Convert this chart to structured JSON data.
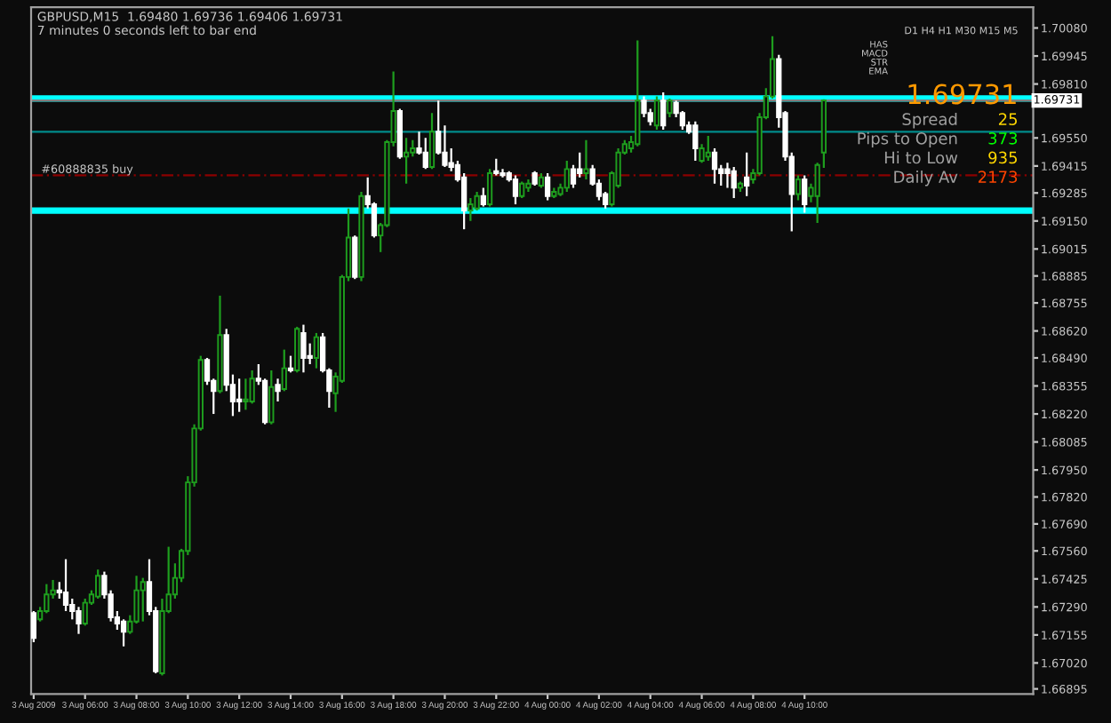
{
  "chart_data": {
    "type": "candlestick",
    "title": "GBPUSD,M15  1.69480 1.69736 1.69406 1.69731",
    "subtitle": "7 minutes 0 seconds left to bar end",
    "x": [
      "2009-08-03T04:00",
      "2009-08-03T04:15",
      "2009-08-03T04:30",
      "2009-08-03T04:45",
      "2009-08-03T05:00",
      "2009-08-03T05:15",
      "2009-08-03T05:30",
      "2009-08-03T05:45",
      "2009-08-03T06:00",
      "2009-08-03T06:15",
      "2009-08-03T06:30",
      "2009-08-03T06:45",
      "2009-08-03T07:00",
      "2009-08-03T07:15",
      "2009-08-03T07:30",
      "2009-08-03T07:45",
      "2009-08-03T08:00",
      "2009-08-03T08:15",
      "2009-08-03T08:30",
      "2009-08-03T08:45",
      "2009-08-03T09:00",
      "2009-08-03T09:15",
      "2009-08-03T09:30",
      "2009-08-03T09:45",
      "2009-08-03T10:00",
      "2009-08-03T10:15",
      "2009-08-03T10:30",
      "2009-08-03T10:45",
      "2009-08-03T11:00",
      "2009-08-03T11:15",
      "2009-08-03T11:30",
      "2009-08-03T11:45",
      "2009-08-03T12:00",
      "2009-08-03T12:15",
      "2009-08-03T12:30",
      "2009-08-03T12:45",
      "2009-08-03T13:00",
      "2009-08-03T13:15",
      "2009-08-03T13:30",
      "2009-08-03T13:45",
      "2009-08-03T14:00",
      "2009-08-03T14:15",
      "2009-08-03T14:30",
      "2009-08-03T14:45",
      "2009-08-03T15:00",
      "2009-08-03T15:15",
      "2009-08-03T15:30",
      "2009-08-03T15:45",
      "2009-08-03T16:00",
      "2009-08-03T16:15",
      "2009-08-03T16:30",
      "2009-08-03T16:45",
      "2009-08-03T17:00",
      "2009-08-03T17:15",
      "2009-08-03T17:30",
      "2009-08-03T17:45",
      "2009-08-03T18:00",
      "2009-08-03T18:15",
      "2009-08-03T18:30",
      "2009-08-03T18:45",
      "2009-08-03T19:00",
      "2009-08-03T19:15",
      "2009-08-03T19:30",
      "2009-08-03T19:45",
      "2009-08-03T20:00",
      "2009-08-03T20:15",
      "2009-08-03T20:30",
      "2009-08-03T20:45",
      "2009-08-03T21:00",
      "2009-08-03T21:15",
      "2009-08-03T21:30",
      "2009-08-03T21:45",
      "2009-08-03T22:00",
      "2009-08-03T22:15",
      "2009-08-03T22:30",
      "2009-08-03T22:45",
      "2009-08-03T23:00",
      "2009-08-03T23:15",
      "2009-08-03T23:30",
      "2009-08-03T23:45",
      "2009-08-04T00:00",
      "2009-08-04T00:15",
      "2009-08-04T00:30",
      "2009-08-04T00:45",
      "2009-08-04T01:00",
      "2009-08-04T01:15",
      "2009-08-04T01:30",
      "2009-08-04T01:45",
      "2009-08-04T02:00",
      "2009-08-04T02:15",
      "2009-08-04T02:30",
      "2009-08-04T02:45",
      "2009-08-04T03:00",
      "2009-08-04T03:15",
      "2009-08-04T03:30",
      "2009-08-04T03:45",
      "2009-08-04T04:00",
      "2009-08-04T04:15",
      "2009-08-04T04:30",
      "2009-08-04T04:45",
      "2009-08-04T05:00",
      "2009-08-04T05:15",
      "2009-08-04T05:30",
      "2009-08-04T05:45",
      "2009-08-04T06:00",
      "2009-08-04T06:15",
      "2009-08-04T06:30",
      "2009-08-04T06:45",
      "2009-08-04T07:00",
      "2009-08-04T07:15",
      "2009-08-04T07:30",
      "2009-08-04T07:45",
      "2009-08-04T08:00",
      "2009-08-04T08:15",
      "2009-08-04T08:30",
      "2009-08-04T08:45",
      "2009-08-04T09:00",
      "2009-08-04T09:15",
      "2009-08-04T09:30",
      "2009-08-04T09:45",
      "2009-08-04T10:00",
      "2009-08-04T10:15",
      "2009-08-04T10:30",
      "2009-08-04T10:45"
    ],
    "ohlc": [
      [
        1.6726,
        1.6727,
        1.6712,
        1.6714
      ],
      [
        1.6723,
        1.6729,
        1.6722,
        1.6727
      ],
      [
        1.6727,
        1.674,
        1.6726,
        1.6735
      ],
      [
        1.6735,
        1.6742,
        1.6733,
        1.6737
      ],
      [
        1.6737,
        1.6741,
        1.6733,
        1.6736
      ],
      [
        1.6736,
        1.6752,
        1.6727,
        1.673
      ],
      [
        1.673,
        1.6733,
        1.6723,
        1.6727
      ],
      [
        1.6727,
        1.6729,
        1.6716,
        1.6721
      ],
      [
        1.6721,
        1.6733,
        1.672,
        1.6731
      ],
      [
        1.6731,
        1.6737,
        1.673,
        1.6735
      ],
      [
        1.6734,
        1.6747,
        1.6733,
        1.6744
      ],
      [
        1.6744,
        1.6746,
        1.6733,
        1.6735
      ],
      [
        1.6735,
        1.6737,
        1.6722,
        1.6724
      ],
      [
        1.6724,
        1.6727,
        1.6718,
        1.6721
      ],
      [
        1.6722,
        1.6723,
        1.671,
        1.6717
      ],
      [
        1.6717,
        1.6725,
        1.6716,
        1.6722
      ],
      [
        1.6722,
        1.6744,
        1.6721,
        1.6737
      ],
      [
        1.6737,
        1.6743,
        1.6722,
        1.6741
      ],
      [
        1.6741,
        1.6752,
        1.6725,
        1.6727
      ],
      [
        1.6727,
        1.6729,
        1.6697,
        1.6698
      ],
      [
        1.6697,
        1.6733,
        1.6696,
        1.6727
      ],
      [
        1.6727,
        1.6758,
        1.6726,
        1.6735
      ],
      [
        1.6735,
        1.675,
        1.6733,
        1.6743
      ],
      [
        1.6743,
        1.6757,
        1.6741,
        1.6756
      ],
      [
        1.6756,
        1.6792,
        1.6754,
        1.6789
      ],
      [
        1.6789,
        1.6817,
        1.6787,
        1.6815
      ],
      [
        1.6815,
        1.685,
        1.6814,
        1.6848
      ],
      [
        1.6848,
        1.6849,
        1.6836,
        1.6838
      ],
      [
        1.6838,
        1.6839,
        1.6822,
        1.6833
      ],
      [
        1.6833,
        1.6879,
        1.6832,
        1.686
      ],
      [
        1.686,
        1.6863,
        1.6833,
        1.6836
      ],
      [
        1.6836,
        1.6841,
        1.6821,
        1.6828
      ],
      [
        1.6829,
        1.6839,
        1.6823,
        1.6828
      ],
      [
        1.6828,
        1.6839,
        1.6824,
        1.6829
      ],
      [
        1.6828,
        1.6843,
        1.6827,
        1.6839
      ],
      [
        1.6839,
        1.6846,
        1.6836,
        1.6838
      ],
      [
        1.6838,
        1.6839,
        1.6817,
        1.6818
      ],
      [
        1.6818,
        1.6843,
        1.6817,
        1.6835
      ],
      [
        1.6836,
        1.6839,
        1.6828,
        1.6833
      ],
      [
        1.6834,
        1.6853,
        1.6833,
        1.6844
      ],
      [
        1.6844,
        1.685,
        1.6842,
        1.6843
      ],
      [
        1.6843,
        1.6864,
        1.6842,
        1.6863
      ],
      [
        1.6861,
        1.6865,
        1.6842,
        1.6849
      ],
      [
        1.685,
        1.6856,
        1.6846,
        1.6849
      ],
      [
        1.6849,
        1.6861,
        1.6844,
        1.6859
      ],
      [
        1.6859,
        1.6861,
        1.6842,
        1.6843
      ],
      [
        1.6843,
        1.6844,
        1.6825,
        1.6833
      ],
      [
        1.6832,
        1.6842,
        1.6823,
        1.684
      ],
      [
        1.6838,
        1.6889,
        1.6837,
        1.6888
      ],
      [
        1.6888,
        1.6921,
        1.6886,
        1.6907
      ],
      [
        1.6907,
        1.6908,
        1.6887,
        1.6888
      ],
      [
        1.6888,
        1.6929,
        1.6886,
        1.6927
      ],
      [
        1.6927,
        1.6936,
        1.6921,
        1.6923
      ],
      [
        1.6923,
        1.6924,
        1.6907,
        1.6908
      ],
      [
        1.6908,
        1.6914,
        1.69,
        1.6913
      ],
      [
        1.6913,
        1.6954,
        1.6912,
        1.6953
      ],
      [
        1.6953,
        1.6987,
        1.6951,
        1.6968
      ],
      [
        1.6968,
        1.6969,
        1.6945,
        1.6946
      ],
      [
        1.6946,
        1.6955,
        1.6933,
        1.6948
      ],
      [
        1.6948,
        1.6954,
        1.6946,
        1.695
      ],
      [
        1.695,
        1.6958,
        1.6947,
        1.6948
      ],
      [
        1.6948,
        1.6955,
        1.694,
        1.6941
      ],
      [
        1.6941,
        1.6967,
        1.694,
        1.6958
      ],
      [
        1.6958,
        1.6973,
        1.6947,
        1.6948
      ],
      [
        1.6948,
        1.6961,
        1.6941,
        1.6942
      ],
      [
        1.6943,
        1.695,
        1.6939,
        1.6941
      ],
      [
        1.6942,
        1.6944,
        1.6934,
        1.6935
      ],
      [
        1.6936,
        1.6938,
        1.6911,
        1.692
      ],
      [
        1.692,
        1.6926,
        1.6915,
        1.6923
      ],
      [
        1.6921,
        1.6929,
        1.692,
        1.6927
      ],
      [
        1.6927,
        1.6931,
        1.6922,
        1.6923
      ],
      [
        1.6923,
        1.694,
        1.6922,
        1.6938
      ],
      [
        1.6939,
        1.6945,
        1.6937,
        1.6938
      ],
      [
        1.6938,
        1.694,
        1.6936,
        1.6937
      ],
      [
        1.6938,
        1.6939,
        1.6934,
        1.6935
      ],
      [
        1.6935,
        1.6937,
        1.6923,
        1.6927
      ],
      [
        1.6927,
        1.6934,
        1.6926,
        1.6933
      ],
      [
        1.6931,
        1.6935,
        1.6929,
        1.6933
      ],
      [
        1.6938,
        1.6939,
        1.6932,
        1.6933
      ],
      [
        1.6932,
        1.6938,
        1.6931,
        1.6936
      ],
      [
        1.6936,
        1.6938,
        1.6925,
        1.6927
      ],
      [
        1.6927,
        1.6931,
        1.6926,
        1.6929
      ],
      [
        1.6928,
        1.6933,
        1.6927,
        1.6931
      ],
      [
        1.6931,
        1.6944,
        1.6929,
        1.694
      ],
      [
        1.694,
        1.6942,
        1.6931,
        1.6933
      ],
      [
        1.694,
        1.6948,
        1.6936,
        1.6938
      ],
      [
        1.6938,
        1.6954,
        1.6935,
        1.694
      ],
      [
        1.694,
        1.6942,
        1.6932,
        1.6933
      ],
      [
        1.6933,
        1.6935,
        1.6925,
        1.6927
      ],
      [
        1.6928,
        1.6929,
        1.6921,
        1.6923
      ],
      [
        1.6923,
        1.6939,
        1.6922,
        1.6938
      ],
      [
        1.6932,
        1.695,
        1.6931,
        1.6948
      ],
      [
        1.6948,
        1.6954,
        1.6947,
        1.6952
      ],
      [
        1.695,
        1.6956,
        1.6948,
        1.6953
      ],
      [
        1.6952,
        1.7002,
        1.6951,
        1.6973
      ],
      [
        1.6973,
        1.6975,
        1.6965,
        1.6967
      ],
      [
        1.6967,
        1.6969,
        1.6961,
        1.6963
      ],
      [
        1.6961,
        1.6975,
        1.6959,
        1.6973
      ],
      [
        1.6973,
        1.6977,
        1.6959,
        1.6961
      ],
      [
        1.6967,
        1.6974,
        1.6965,
        1.6973
      ],
      [
        1.6972,
        1.6973,
        1.6965,
        1.6967
      ],
      [
        1.6967,
        1.6968,
        1.6959,
        1.6961
      ],
      [
        1.6961,
        1.6963,
        1.6957,
        1.6958
      ],
      [
        1.6961,
        1.6963,
        1.6944,
        1.695
      ],
      [
        1.6944,
        1.6952,
        1.6943,
        1.695
      ],
      [
        1.6946,
        1.6956,
        1.6944,
        1.6948
      ],
      [
        1.6948,
        1.695,
        1.6933,
        1.694
      ],
      [
        1.694,
        1.6942,
        1.6932,
        1.6938
      ],
      [
        1.694,
        1.6943,
        1.6931,
        1.6938
      ],
      [
        1.6939,
        1.6941,
        1.6926,
        1.6931
      ],
      [
        1.6931,
        1.6934,
        1.6929,
        1.6933
      ],
      [
        1.6936,
        1.6948,
        1.6927,
        1.6932
      ],
      [
        1.6935,
        1.694,
        1.6933,
        1.6938
      ],
      [
        1.6938,
        1.6967,
        1.6937,
        1.6965
      ],
      [
        1.6965,
        1.6979,
        1.6964,
        1.6975
      ],
      [
        1.6975,
        1.7004,
        1.6974,
        1.6993
      ],
      [
        1.6993,
        1.6995,
        1.696,
        1.6965
      ],
      [
        1.6967,
        1.6968,
        1.6944,
        1.6946
      ],
      [
        1.6946,
        1.6948,
        1.691,
        1.6928
      ],
      [
        1.6928,
        1.6937,
        1.6925,
        1.6935
      ],
      [
        1.6935,
        1.6937,
        1.6919,
        1.6923
      ],
      [
        1.6927,
        1.6933,
        1.6924,
        1.6931
      ],
      [
        1.6927,
        1.6943,
        1.6914,
        1.6942
      ],
      [
        1.6948,
        1.69736,
        1.69406,
        1.69731
      ]
    ],
    "colors": [
      "#ffffff",
      "#1e9e1e",
      "#1e9e1e",
      "#1e9e1e",
      "#ffffff",
      "#ffffff",
      "#ffffff",
      "#ffffff",
      "#1e9e1e",
      "#1e9e1e",
      "#1e9e1e",
      "#ffffff",
      "#ffffff",
      "#ffffff",
      "#ffffff",
      "#1e9e1e",
      "#1e9e1e",
      "#1e9e1e",
      "#ffffff",
      "#ffffff",
      "#1e9e1e",
      "#1e9e1e",
      "#1e9e1e",
      "#1e9e1e",
      "#1e9e1e",
      "#1e9e1e",
      "#1e9e1e",
      "#ffffff",
      "#ffffff",
      "#1e9e1e",
      "#ffffff",
      "#ffffff",
      "#ffffff",
      "#1e9e1e",
      "#1e9e1e",
      "#ffffff",
      "#ffffff",
      "#1e9e1e",
      "#ffffff",
      "#1e9e1e",
      "#ffffff",
      "#1e9e1e",
      "#ffffff",
      "#ffffff",
      "#1e9e1e",
      "#ffffff",
      "#ffffff",
      "#1e9e1e",
      "#1e9e1e",
      "#1e9e1e",
      "#ffffff",
      "#1e9e1e",
      "#ffffff",
      "#ffffff",
      "#1e9e1e",
      "#1e9e1e",
      "#1e9e1e",
      "#ffffff",
      "#1e9e1e",
      "#1e9e1e",
      "#ffffff",
      "#ffffff",
      "#1e9e1e",
      "#ffffff",
      "#ffffff",
      "#ffffff",
      "#ffffff",
      "#ffffff",
      "#1e9e1e",
      "#1e9e1e",
      "#ffffff",
      "#1e9e1e",
      "#ffffff",
      "#ffffff",
      "#ffffff",
      "#ffffff",
      "#1e9e1e",
      "#1e9e1e",
      "#ffffff",
      "#1e9e1e",
      "#ffffff",
      "#1e9e1e",
      "#1e9e1e",
      "#1e9e1e",
      "#ffffff",
      "#ffffff",
      "#1e9e1e",
      "#ffffff",
      "#ffffff",
      "#ffffff",
      "#1e9e1e",
      "#1e9e1e",
      "#1e9e1e",
      "#1e9e1e",
      "#1e9e1e",
      "#ffffff",
      "#ffffff",
      "#1e9e1e",
      "#ffffff",
      "#1e9e1e",
      "#ffffff",
      "#ffffff",
      "#ffffff",
      "#ffffff",
      "#1e9e1e",
      "#1e9e1e",
      "#ffffff",
      "#ffffff",
      "#ffffff",
      "#ffffff",
      "#1e9e1e",
      "#ffffff",
      "#1e9e1e",
      "#1e9e1e",
      "#1e9e1e",
      "#1e9e1e",
      "#ffffff",
      "#ffffff",
      "#ffffff",
      "#1e9e1e",
      "#ffffff",
      "#1e9e1e",
      "#1e9e1e",
      "#1e9e1e"
    ],
    "xlim": [
      "2009-08-03T03:54",
      "2009-08-04T18:54"
    ],
    "xticks": [
      {
        "value": "2009-08-03T04:00",
        "label": "3 Aug 2009"
      },
      {
        "value": "2009-08-03T06:00",
        "label": "3 Aug 06:00"
      },
      {
        "value": "2009-08-03T08:00",
        "label": "3 Aug 08:00"
      },
      {
        "value": "2009-08-03T10:00",
        "label": "3 Aug 10:00"
      },
      {
        "value": "2009-08-03T12:00",
        "label": "3 Aug 12:00"
      },
      {
        "value": "2009-08-03T14:00",
        "label": "3 Aug 14:00"
      },
      {
        "value": "2009-08-03T16:00",
        "label": "3 Aug 16:00"
      },
      {
        "value": "2009-08-03T18:00",
        "label": "3 Aug 18:00"
      },
      {
        "value": "2009-08-03T20:00",
        "label": "3 Aug 20:00"
      },
      {
        "value": "2009-08-03T22:00",
        "label": "3 Aug 22:00"
      },
      {
        "value": "2009-08-04T00:00",
        "label": "4 Aug 00:00"
      },
      {
        "value": "2009-08-04T02:00",
        "label": "4 Aug 02:00"
      },
      {
        "value": "2009-08-04T04:00",
        "label": "4 Aug 04:00"
      },
      {
        "value": "2009-08-04T06:00",
        "label": "4 Aug 06:00"
      },
      {
        "value": "2009-08-04T08:00",
        "label": "4 Aug 08:00"
      },
      {
        "value": "2009-08-04T10:00",
        "label": "4 Aug 10:00"
      }
    ],
    "ylim": [
      1.6687,
      1.7018
    ],
    "yticks": [
      {
        "value": 1.7008,
        "label": "1.70080"
      },
      {
        "value": 1.69945,
        "label": "1.69945"
      },
      {
        "value": 1.6981,
        "label": "1.69810"
      },
      {
        "value": 1.6955,
        "label": "1.69550"
      },
      {
        "value": 1.69415,
        "label": "1.69415"
      },
      {
        "value": 1.69285,
        "label": "1.69285"
      },
      {
        "value": 1.6915,
        "label": "1.69150"
      },
      {
        "value": 1.69015,
        "label": "1.69015"
      },
      {
        "value": 1.68885,
        "label": "1.68885"
      },
      {
        "value": 1.68755,
        "label": "1.68755"
      },
      {
        "value": 1.6862,
        "label": "1.68620"
      },
      {
        "value": 1.6849,
        "label": "1.68490"
      },
      {
        "value": 1.68355,
        "label": "1.68355"
      },
      {
        "value": 1.6822,
        "label": "1.68220"
      },
      {
        "value": 1.68085,
        "label": "1.68085"
      },
      {
        "value": 1.6795,
        "label": "1.67950"
      },
      {
        "value": 1.6782,
        "label": "1.67820"
      },
      {
        "value": 1.6769,
        "label": "1.67690"
      },
      {
        "value": 1.6756,
        "label": "1.67560"
      },
      {
        "value": 1.67425,
        "label": "1.67425"
      },
      {
        "value": 1.6729,
        "label": "1.67290"
      },
      {
        "value": 1.67155,
        "label": "1.67155"
      },
      {
        "value": 1.6702,
        "label": "1.67020"
      },
      {
        "value": 1.66895,
        "label": "1.66895"
      }
    ],
    "ref_lines": [
      {
        "axis": "y",
        "value": 1.6974,
        "label": null,
        "color": "#00ffff",
        "line_style": "solid"
      },
      {
        "axis": "y",
        "value": 1.692,
        "label": null,
        "color": "#00ffff",
        "line_style": "solid"
      },
      {
        "axis": "y",
        "value": 1.6958,
        "label": null,
        "color": "#008b8b",
        "line_style": "solid"
      },
      {
        "axis": "y",
        "value": 1.6937,
        "label": "#60888835 buy",
        "color": "#8b0000",
        "line_style": "dashed"
      },
      {
        "axis": "y",
        "value": 1.69731,
        "label": "1.69731",
        "color": "#808080",
        "line_style": "solid"
      }
    ],
    "annotations": [
      "D1 H4 H1 M30 M15 M5",
      "HAS",
      "MACD",
      "STR",
      "EMA",
      "1.69731",
      "Spread",
      "25",
      "Pips to Open",
      "373",
      "Hi to Low",
      "935",
      "Daily Av",
      "2173"
    ],
    "grid": false,
    "legend": false
  }
}
